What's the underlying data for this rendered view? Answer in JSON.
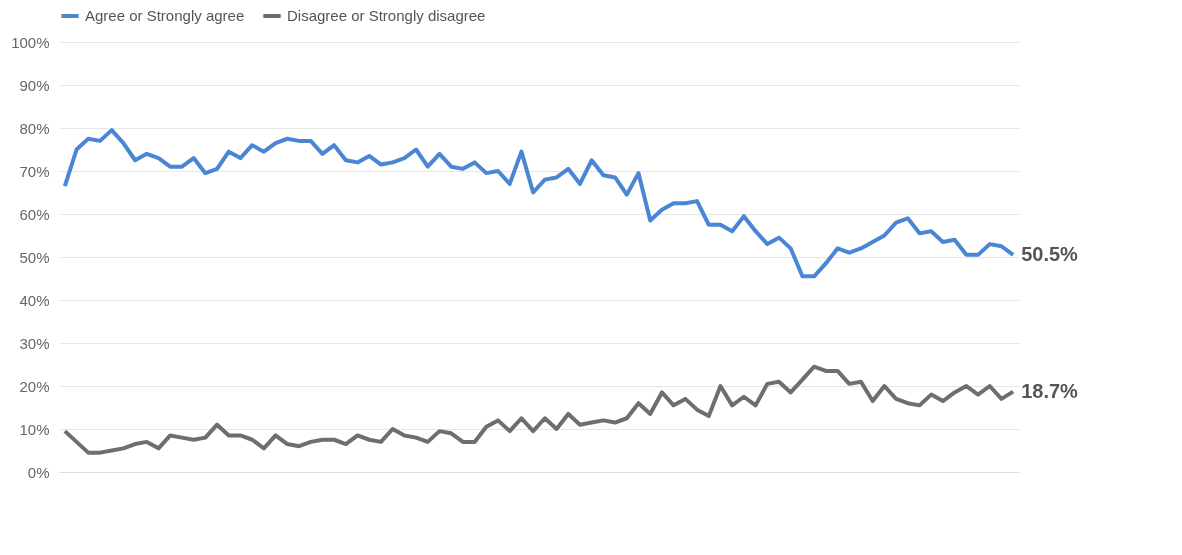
{
  "chart_data": {
    "type": "line",
    "categories": [
      null,
      null,
      null,
      null,
      null,
      null,
      null,
      null,
      null,
      null,
      null,
      null,
      null,
      null,
      null,
      null,
      null,
      null,
      null,
      null,
      null,
      null,
      null,
      null,
      null,
      null,
      null,
      null,
      null,
      null,
      null,
      null,
      null,
      null,
      null,
      null,
      null,
      null,
      null,
      null,
      null,
      null,
      null,
      null,
      null,
      null,
      null,
      null,
      null,
      null,
      null,
      null,
      null,
      null,
      null,
      null,
      null,
      null,
      null,
      null,
      null,
      null,
      null,
      null,
      null,
      null,
      null,
      null,
      null,
      null,
      null,
      null,
      null,
      null,
      null,
      null,
      null,
      null,
      null,
      null,
      null,
      null
    ],
    "series": [
      {
        "name": "Agree or Strongly agree",
        "color": "#4a86d4",
        "values": [
          66.5,
          75,
          77.5,
          77,
          79.5,
          76.5,
          72.5,
          74,
          73,
          71,
          71,
          73,
          69.5,
          70.5,
          74.5,
          73,
          76,
          74.5,
          76.5,
          77.5,
          77,
          77,
          74,
          76,
          72.5,
          72,
          73.5,
          71.5,
          72,
          73,
          75,
          71,
          74,
          71,
          70.5,
          72,
          69.5,
          70,
          67,
          74.5,
          65,
          68,
          68.5,
          70.5,
          67,
          72.5,
          69,
          68.5,
          64.5,
          69.5,
          58.5,
          61,
          62.5,
          62.5,
          63,
          57.5,
          57.5,
          56,
          59.5,
          56,
          53,
          54.5,
          52,
          45.5,
          45.5,
          48.5,
          52,
          51,
          52,
          53.5,
          55,
          58,
          59,
          55.5,
          56,
          53.5,
          54,
          50.5,
          50.5,
          53,
          52.5,
          50.5
        ]
      },
      {
        "name": "Disagree or Strongly disagree",
        "color": "#6e6e6e",
        "values": [
          9.5,
          7,
          4.5,
          4.5,
          5,
          5.5,
          6.5,
          7,
          5.5,
          8.5,
          8,
          7.5,
          8,
          11,
          8.5,
          8.5,
          7.5,
          5.5,
          8.5,
          6.5,
          6,
          7,
          7.5,
          7.5,
          6.5,
          8.5,
          7.5,
          7,
          10,
          8.5,
          8,
          7,
          9.5,
          9,
          7,
          7,
          10.5,
          12,
          9.5,
          12.5,
          9.5,
          12.5,
          10,
          13.5,
          11,
          11.5,
          12,
          11.5,
          12.5,
          16,
          13.5,
          18.5,
          15.5,
          17,
          14.5,
          13,
          20,
          15.5,
          17.5,
          15.5,
          20.5,
          21,
          18.5,
          21.5,
          24.5,
          23.5,
          23.5,
          20.5,
          21,
          16.5,
          20,
          17,
          16,
          15.5,
          18,
          16.5,
          18.5,
          20,
          18,
          20,
          17,
          18.7
        ]
      }
    ],
    "ylim": [
      0,
      100
    ],
    "yticks": [
      {
        "value": 0,
        "label": "0%"
      },
      {
        "value": 10,
        "label": "10%"
      },
      {
        "value": 20,
        "label": "20%"
      },
      {
        "value": 30,
        "label": "30%"
      },
      {
        "value": 40,
        "label": "40%"
      },
      {
        "value": 50,
        "label": "50%"
      },
      {
        "value": 60,
        "label": "60%"
      },
      {
        "value": 70,
        "label": "70%"
      },
      {
        "value": 80,
        "label": "80%"
      },
      {
        "value": 90,
        "label": "90%"
      },
      {
        "value": 100,
        "label": "100%"
      }
    ],
    "annotations": [
      "50.5%",
      "18.7%"
    ],
    "grid": "y",
    "legend": "top",
    "tick_labels": "y",
    "marker": "none",
    "line_style": "solid"
  }
}
